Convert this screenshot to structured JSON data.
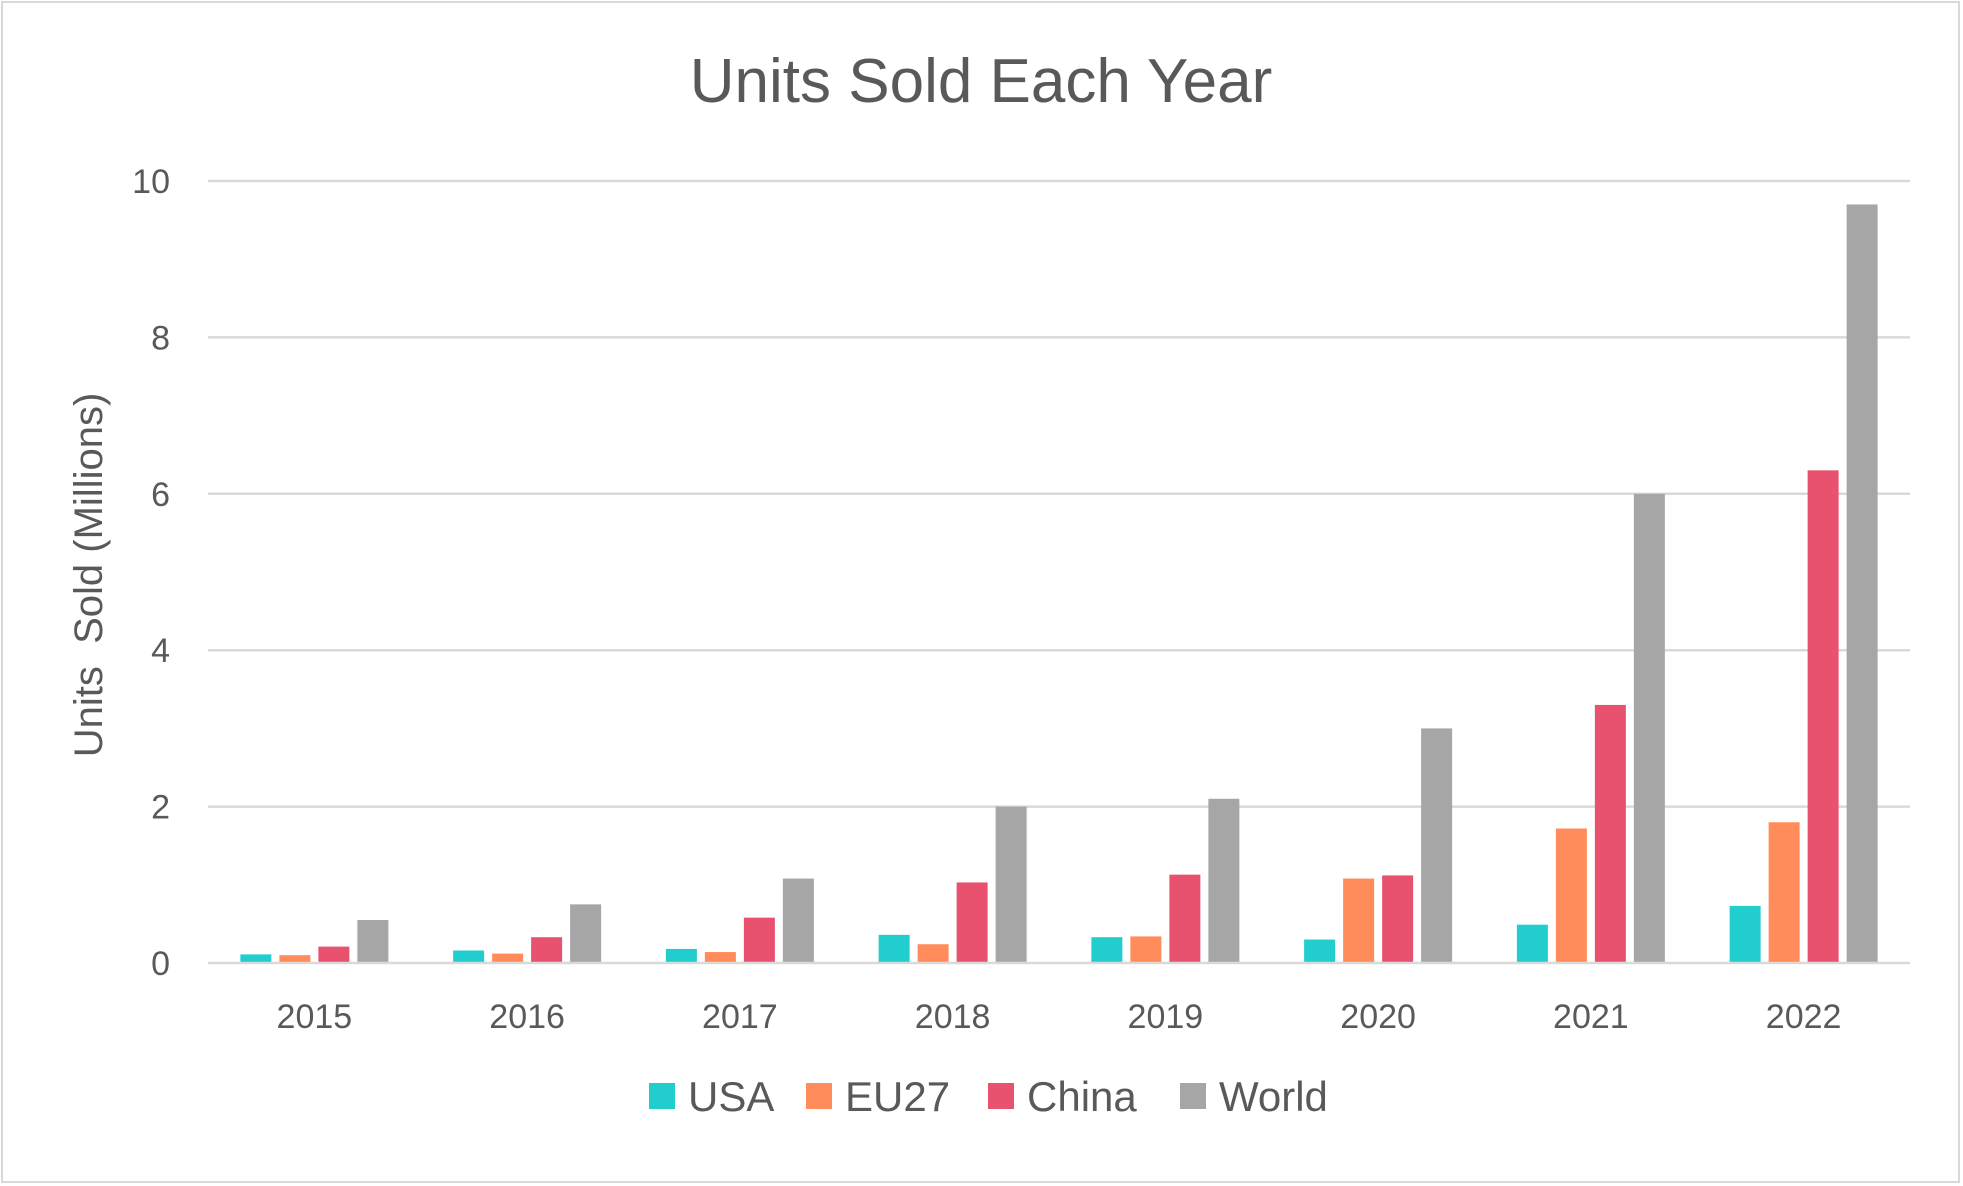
{
  "chart_data": {
    "type": "bar",
    "title": "Units Sold Each Year",
    "xlabel": "",
    "ylabel": "Units  Sold (Millions)",
    "ylim": [
      0,
      10
    ],
    "yticks": [
      0,
      2,
      4,
      6,
      8,
      10
    ],
    "grid": true,
    "legend_position": "bottom",
    "categories": [
      "2015",
      "2016",
      "2017",
      "2018",
      "2019",
      "2020",
      "2021",
      "2022"
    ],
    "series": [
      {
        "name": "USA",
        "color": "#22cdd0",
        "values": [
          0.11,
          0.16,
          0.18,
          0.36,
          0.33,
          0.3,
          0.49,
          0.73
        ]
      },
      {
        "name": "EU27",
        "color": "#ff8c5a",
        "values": [
          0.1,
          0.12,
          0.14,
          0.24,
          0.34,
          1.08,
          1.72,
          1.8
        ]
      },
      {
        "name": "China",
        "color": "#e8526f",
        "values": [
          0.21,
          0.33,
          0.58,
          1.03,
          1.13,
          1.12,
          3.3,
          6.3
        ]
      },
      {
        "name": "World",
        "color": "#a6a6a6",
        "values": [
          0.55,
          0.75,
          1.08,
          2.0,
          2.1,
          3.0,
          6.0,
          9.7
        ]
      }
    ]
  }
}
